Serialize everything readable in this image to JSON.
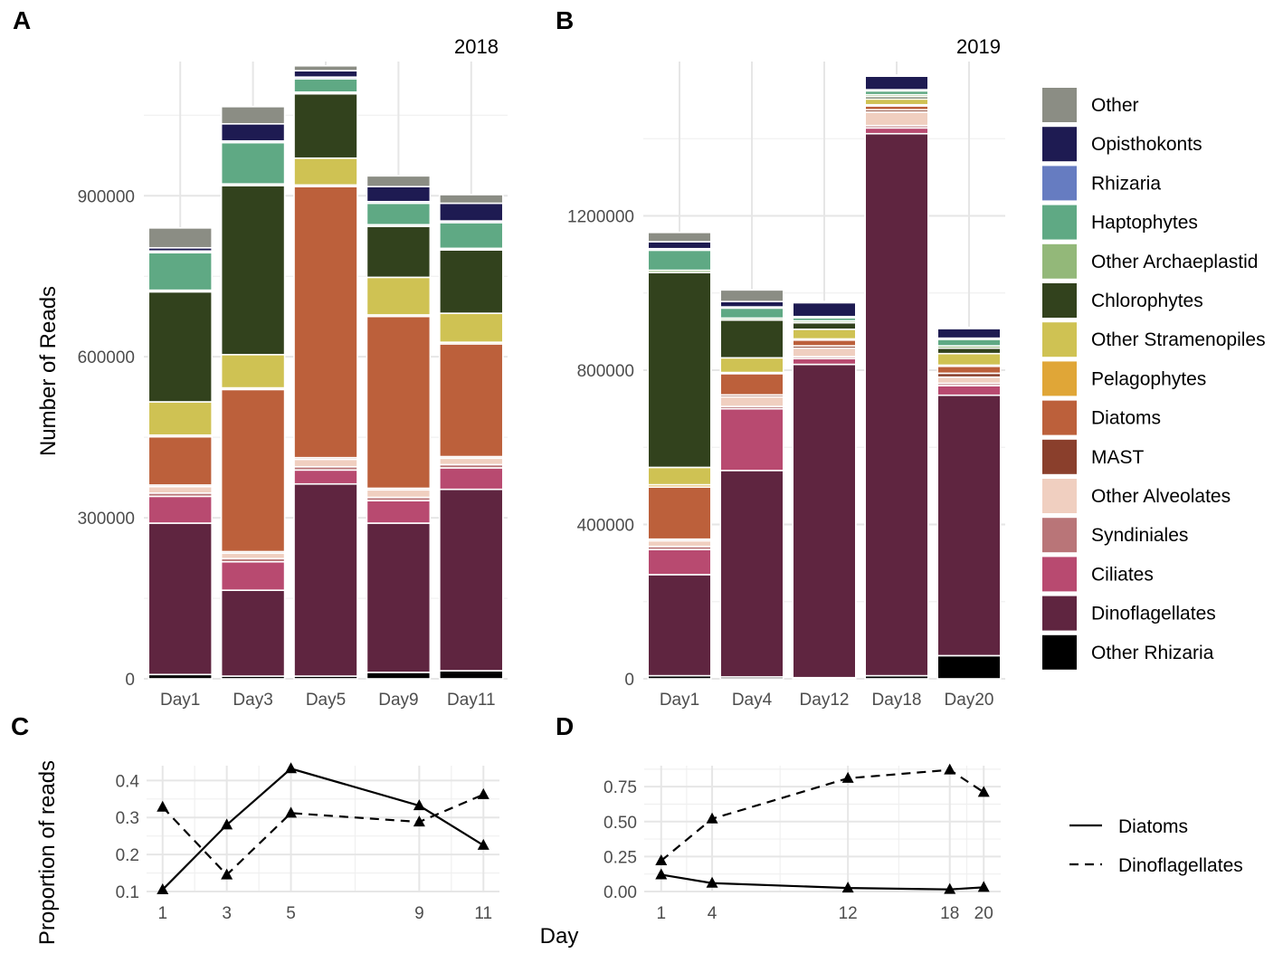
{
  "chart_data": [
    {
      "panel": "A",
      "type": "bar",
      "stacked": true,
      "title": "2018",
      "ylabel": "Number of Reads",
      "xlabel": "",
      "ylim": [
        0,
        1150000
      ],
      "yticks": [
        0,
        300000,
        600000,
        900000
      ],
      "ytick_labels": [
        "0",
        "300000",
        "600000",
        "900000"
      ],
      "categories": [
        "Day1",
        "Day3",
        "Day5",
        "Day9",
        "Day11"
      ],
      "series": [
        {
          "name": "Other Rhizaria",
          "values": [
            8000,
            5000,
            5000,
            12000,
            15000
          ]
        },
        {
          "name": "Dinoflagellates",
          "values": [
            282000,
            160000,
            358000,
            278000,
            338000
          ]
        },
        {
          "name": "Ciliates",
          "values": [
            50000,
            53000,
            26000,
            42000,
            40000
          ]
        },
        {
          "name": "Syndiniales",
          "values": [
            6000,
            6000,
            6000,
            6000,
            6000
          ]
        },
        {
          "name": "Other Alveolates",
          "values": [
            12000,
            10000,
            14000,
            14000,
            12000
          ]
        },
        {
          "name": "MAST",
          "values": [
            3000,
            3000,
            3000,
            3000,
            3000
          ]
        },
        {
          "name": "Diatoms",
          "values": [
            90000,
            302000,
            505000,
            320000,
            210000
          ]
        },
        {
          "name": "Pelagophytes",
          "values": [
            3000,
            3000,
            3000,
            3000,
            3000
          ]
        },
        {
          "name": "Other Stramenopiles",
          "values": [
            62000,
            62000,
            50000,
            70000,
            54000
          ]
        },
        {
          "name": "Chlorophytes",
          "values": [
            205000,
            315000,
            120000,
            95000,
            118000
          ]
        },
        {
          "name": "Other Archaeplastid",
          "values": [
            3000,
            3000,
            3000,
            3000,
            3000
          ]
        },
        {
          "name": "Haptophytes",
          "values": [
            70000,
            77000,
            25000,
            40000,
            48000
          ]
        },
        {
          "name": "Rhizaria",
          "values": [
            3000,
            3000,
            3000,
            3000,
            3000
          ]
        },
        {
          "name": "Opisthokonts",
          "values": [
            6000,
            32000,
            12000,
            28000,
            33000
          ]
        },
        {
          "name": "Other",
          "values": [
            37000,
            32000,
            9000,
            20000,
            16000
          ]
        }
      ]
    },
    {
      "panel": "B",
      "type": "bar",
      "stacked": true,
      "title": "2019",
      "ylabel": "",
      "xlabel": "",
      "ylim": [
        0,
        1600000
      ],
      "yticks": [
        0,
        400000,
        800000,
        1200000
      ],
      "ytick_labels": [
        "0",
        "400000",
        "800000",
        "1200000"
      ],
      "categories": [
        "Day1",
        "Day4",
        "Day12",
        "Day18",
        "Day20"
      ],
      "series": [
        {
          "name": "Other Rhizaria",
          "values": [
            8000,
            5000,
            3000,
            8000,
            60000
          ]
        },
        {
          "name": "Dinoflagellates",
          "values": [
            262000,
            535000,
            812000,
            1405000,
            675000
          ]
        },
        {
          "name": "Ciliates",
          "values": [
            65000,
            160000,
            15000,
            15000,
            25000
          ]
        },
        {
          "name": "Syndiniales",
          "values": [
            8000,
            6000,
            5000,
            6000,
            6000
          ]
        },
        {
          "name": "Other Alveolates",
          "values": [
            15000,
            25000,
            22000,
            35000,
            16000
          ]
        },
        {
          "name": "MAST",
          "values": [
            4000,
            5000,
            6000,
            6000,
            10000
          ]
        },
        {
          "name": "Diatoms",
          "values": [
            135000,
            55000,
            15000,
            10000,
            18000
          ]
        },
        {
          "name": "Pelagophytes",
          "values": [
            6000,
            3000,
            3000,
            3000,
            3000
          ]
        },
        {
          "name": "Other Stramenopiles",
          "values": [
            45000,
            38000,
            25000,
            15000,
            30000
          ]
        },
        {
          "name": "Chlorophytes",
          "values": [
            505000,
            98000,
            17000,
            6000,
            14000
          ]
        },
        {
          "name": "Other Archaeplastid",
          "values": [
            6000,
            5000,
            5000,
            5000,
            6000
          ]
        },
        {
          "name": "Haptophytes",
          "values": [
            52000,
            26000,
            8000,
            10000,
            17000
          ]
        },
        {
          "name": "Rhizaria",
          "values": [
            4000,
            3000,
            3000,
            3000,
            3000
          ]
        },
        {
          "name": "Opisthokonts",
          "values": [
            18000,
            14000,
            36000,
            35000,
            25000
          ]
        },
        {
          "name": "Other",
          "values": [
            24000,
            30000,
            3000,
            3000,
            3000
          ]
        }
      ]
    },
    {
      "panel": "C",
      "type": "line",
      "title": "",
      "ylabel": "Proportion of reads",
      "xlabel": "Day",
      "ylim": [
        0.1,
        0.44
      ],
      "xlim": [
        0.5,
        11.5
      ],
      "x": [
        1,
        3,
        5,
        9,
        11
      ],
      "xtick_labels": [
        "1",
        "3",
        "5",
        "9",
        "11"
      ],
      "yticks": [
        0.1,
        0.2,
        0.3,
        0.4
      ],
      "ytick_labels": [
        "0.1",
        "0.2",
        "0.3",
        "0.4"
      ],
      "series": [
        {
          "name": "Diatoms",
          "values": [
            0.105,
            0.28,
            0.432,
            0.332,
            0.225
          ]
        },
        {
          "name": "Dinoflagellates",
          "values": [
            0.328,
            0.145,
            0.312,
            0.288,
            0.362
          ]
        }
      ]
    },
    {
      "panel": "D",
      "type": "line",
      "title": "",
      "ylabel": "",
      "xlabel": "Day",
      "ylim": [
        0,
        0.9
      ],
      "xlim": [
        0,
        21
      ],
      "x": [
        1,
        4,
        12,
        18,
        20
      ],
      "xtick_labels": [
        "1",
        "4",
        "12",
        "18",
        "20"
      ],
      "yticks": [
        0,
        0.25,
        0.5,
        0.75
      ],
      "ytick_labels": [
        "0.00",
        "0.25",
        "0.50",
        "0.75"
      ],
      "series": [
        {
          "name": "Diatoms",
          "values": [
            0.12,
            0.06,
            0.025,
            0.015,
            0.03
          ]
        },
        {
          "name": "Dinoflagellates",
          "values": [
            0.22,
            0.52,
            0.81,
            0.87,
            0.71
          ]
        }
      ]
    }
  ],
  "panel_labels": [
    "A",
    "B",
    "C",
    "D"
  ],
  "legend_fill": {
    "items": [
      {
        "name": "Other",
        "color": "#8b8d84"
      },
      {
        "name": "Opisthokonts",
        "color": "#1e1b52"
      },
      {
        "name": "Rhizaria",
        "color": "#667cc1"
      },
      {
        "name": "Haptophytes",
        "color": "#5fa984"
      },
      {
        "name": "Other Archaeplastid",
        "color": "#93b879"
      },
      {
        "name": "Chlorophytes",
        "color": "#32421d"
      },
      {
        "name": "Other Stramenopiles",
        "color": "#cfc253"
      },
      {
        "name": "Pelagophytes",
        "color": "#e0a637"
      },
      {
        "name": "Diatoms",
        "color": "#bc603b"
      },
      {
        "name": "MAST",
        "color": "#8a3f2c"
      },
      {
        "name": "Other Alveolates",
        "color": "#f0cfc0"
      },
      {
        "name": "Syndiniales",
        "color": "#b97578"
      },
      {
        "name": "Ciliates",
        "color": "#b84a70"
      },
      {
        "name": "Dinoflagellates",
        "color": "#5f2540"
      },
      {
        "name": "Other Rhizaria",
        "color": "#000000"
      }
    ]
  },
  "legend_lines": {
    "items": [
      {
        "name": "Diatoms",
        "style": "solid"
      },
      {
        "name": "Dinoflagellates",
        "style": "dashed"
      }
    ]
  }
}
